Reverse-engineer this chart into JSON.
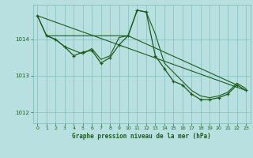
{
  "title": "Graphe pression niveau de la mer (hPa)",
  "bg_color": "#b8e0e0",
  "plot_bg_color": "#b8e0e0",
  "grid_color": "#80c0c0",
  "line_color": "#1a5c1a",
  "marker_color": "#1a5c1a",
  "xlim": [
    -0.5,
    23.5
  ],
  "ylim": [
    1011.7,
    1014.95
  ],
  "yticks": [
    1012,
    1013,
    1014
  ],
  "xticks": [
    0,
    1,
    2,
    3,
    4,
    5,
    6,
    7,
    8,
    9,
    10,
    11,
    12,
    13,
    14,
    15,
    16,
    17,
    18,
    19,
    20,
    21,
    22,
    23
  ],
  "series_main": {
    "x": [
      0,
      1,
      2,
      3,
      4,
      5,
      6,
      7,
      8,
      9,
      10,
      11,
      12,
      13,
      14,
      15,
      16,
      17,
      18,
      19,
      20,
      21,
      22,
      23
    ],
    "y": [
      1014.65,
      1014.1,
      1014.0,
      1013.8,
      1013.55,
      1013.65,
      1013.7,
      1013.35,
      1013.5,
      1013.85,
      1014.1,
      1014.8,
      1014.75,
      1013.55,
      1013.2,
      1012.85,
      1012.75,
      1012.5,
      1012.35,
      1012.35,
      1012.4,
      1012.5,
      1012.75,
      1012.6
    ]
  },
  "series_trend1": {
    "x": [
      1,
      10,
      22
    ],
    "y": [
      1014.1,
      1014.1,
      1012.75
    ]
  },
  "series_trend2": {
    "x": [
      0,
      23
    ],
    "y": [
      1014.65,
      1012.6
    ]
  },
  "series_extra": {
    "x": [
      0,
      1,
      2,
      3,
      4,
      5,
      6,
      7,
      8,
      9,
      10,
      11,
      12,
      13,
      14,
      15,
      16,
      17,
      18,
      19,
      20,
      21,
      22,
      23
    ],
    "y": [
      1014.65,
      1014.1,
      1014.0,
      1013.8,
      1013.7,
      1013.6,
      1013.75,
      1013.45,
      1013.55,
      1014.05,
      1014.1,
      1014.8,
      1014.75,
      1014.15,
      1013.35,
      1013.1,
      1012.85,
      1012.6,
      1012.45,
      1012.4,
      1012.45,
      1012.55,
      1012.8,
      1012.65
    ]
  }
}
